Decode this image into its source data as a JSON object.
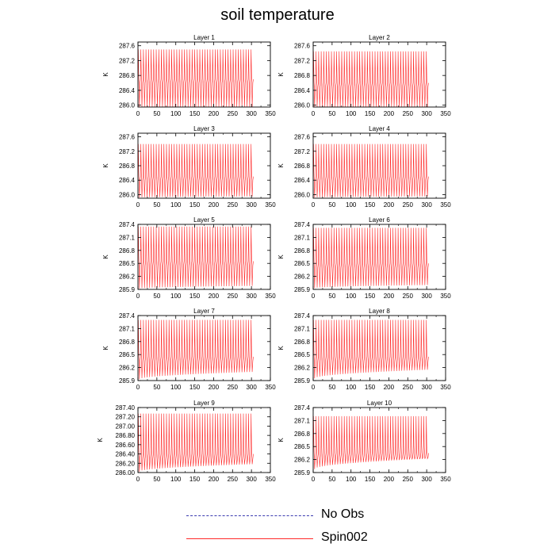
{
  "title": "soil temperature",
  "legend": [
    {
      "label": "No Obs",
      "color": "#3b3bb0",
      "style": "dashed"
    },
    {
      "label": "Spin002",
      "color": "#ff2a2a",
      "style": "solid"
    }
  ],
  "chart_data": [
    {
      "type": "line",
      "title": "Layer 1",
      "xlabel": "",
      "ylabel": "K",
      "xlim": [
        0,
        350
      ],
      "ylim": [
        285.95,
        287.7
      ],
      "xticks": [
        0,
        50,
        100,
        150,
        200,
        250,
        300,
        350
      ],
      "yticks": [
        "286.0",
        "286.4",
        "286.8",
        "287.2",
        "287.6"
      ],
      "series": [
        {
          "name": "Spin002",
          "color": "#ff2a2a",
          "x_range": [
            0,
            305
          ],
          "cycles": 45,
          "peak": 287.5,
          "trough_start": 285.95,
          "trough_end": 285.95,
          "mid": 286.7
        }
      ]
    },
    {
      "type": "line",
      "title": "Layer 2",
      "xlabel": "",
      "ylabel": "K",
      "xlim": [
        0,
        350
      ],
      "ylim": [
        285.95,
        287.7
      ],
      "xticks": [
        0,
        50,
        100,
        150,
        200,
        250,
        300,
        350
      ],
      "yticks": [
        "286.0",
        "286.4",
        "286.8",
        "287.2",
        "287.6"
      ],
      "series": [
        {
          "name": "Spin002",
          "color": "#ff2a2a",
          "x_range": [
            0,
            305
          ],
          "cycles": 45,
          "peak": 287.45,
          "trough_start": 285.95,
          "trough_end": 285.95,
          "mid": 286.6
        }
      ]
    },
    {
      "type": "line",
      "title": "Layer 3",
      "xlabel": "",
      "ylabel": "K",
      "xlim": [
        0,
        350
      ],
      "ylim": [
        285.9,
        287.7
      ],
      "xticks": [
        0,
        50,
        100,
        150,
        200,
        250,
        300,
        350
      ],
      "yticks": [
        "286.0",
        "286.4",
        "286.8",
        "287.2",
        "287.6"
      ],
      "series": [
        {
          "name": "Spin002",
          "color": "#ff2a2a",
          "x_range": [
            0,
            305
          ],
          "cycles": 45,
          "peak": 287.4,
          "trough_start": 285.92,
          "trough_end": 285.95,
          "mid": 286.5
        }
      ]
    },
    {
      "type": "line",
      "title": "Layer 4",
      "xlabel": "",
      "ylabel": "K",
      "xlim": [
        0,
        350
      ],
      "ylim": [
        285.9,
        287.7
      ],
      "xticks": [
        0,
        50,
        100,
        150,
        200,
        250,
        300,
        350
      ],
      "yticks": [
        "286.0",
        "286.4",
        "286.8",
        "287.2",
        "287.6"
      ],
      "series": [
        {
          "name": "Spin002",
          "color": "#ff2a2a",
          "x_range": [
            0,
            305
          ],
          "cycles": 45,
          "peak": 287.4,
          "trough_start": 285.92,
          "trough_end": 285.95,
          "mid": 286.5
        }
      ]
    },
    {
      "type": "line",
      "title": "Layer 5",
      "xlabel": "",
      "ylabel": "K",
      "xlim": [
        0,
        350
      ],
      "ylim": [
        285.9,
        287.4
      ],
      "xticks": [
        0,
        50,
        100,
        150,
        200,
        250,
        300,
        350
      ],
      "yticks": [
        "285.9",
        "286.2",
        "286.5",
        "286.8",
        "287.1",
        "287.4"
      ],
      "series": [
        {
          "name": "Spin002",
          "color": "#ff2a2a",
          "x_range": [
            0,
            305
          ],
          "cycles": 45,
          "peak": 287.35,
          "trough_start": 285.92,
          "trough_end": 285.98,
          "mid": 286.55
        }
      ]
    },
    {
      "type": "line",
      "title": "Layer 6",
      "xlabel": "",
      "ylabel": "K",
      "xlim": [
        0,
        350
      ],
      "ylim": [
        285.9,
        287.4
      ],
      "xticks": [
        0,
        50,
        100,
        150,
        200,
        250,
        300,
        350
      ],
      "yticks": [
        "285.9",
        "286.2",
        "286.5",
        "286.8",
        "287.1",
        "287.4"
      ],
      "series": [
        {
          "name": "Spin002",
          "color": "#ff2a2a",
          "x_range": [
            0,
            305
          ],
          "cycles": 45,
          "peak": 287.32,
          "trough_start": 285.93,
          "trough_end": 286.0,
          "mid": 286.5
        }
      ]
    },
    {
      "type": "line",
      "title": "Layer 7",
      "xlabel": "",
      "ylabel": "K",
      "xlim": [
        0,
        350
      ],
      "ylim": [
        285.9,
        287.4
      ],
      "xticks": [
        0,
        50,
        100,
        150,
        200,
        250,
        300,
        350
      ],
      "yticks": [
        "285.9",
        "286.2",
        "286.5",
        "286.8",
        "287.1",
        "287.4"
      ],
      "series": [
        {
          "name": "Spin002",
          "color": "#ff2a2a",
          "x_range": [
            0,
            305
          ],
          "cycles": 45,
          "peak": 287.3,
          "trough_start": 285.93,
          "trough_end": 286.1,
          "mid": 286.45
        }
      ]
    },
    {
      "type": "line",
      "title": "Layer 8",
      "xlabel": "",
      "ylabel": "K",
      "xlim": [
        0,
        350
      ],
      "ylim": [
        285.9,
        287.4
      ],
      "xticks": [
        0,
        50,
        100,
        150,
        200,
        250,
        300,
        350
      ],
      "yticks": [
        "285.9",
        "286.2",
        "286.5",
        "286.8",
        "287.1",
        "287.4"
      ],
      "series": [
        {
          "name": "Spin002",
          "color": "#ff2a2a",
          "x_range": [
            0,
            305
          ],
          "cycles": 45,
          "peak": 287.3,
          "trough_start": 285.95,
          "trough_end": 286.15,
          "mid": 286.45
        }
      ]
    },
    {
      "type": "line",
      "title": "Layer 9",
      "xlabel": "",
      "ylabel": "K",
      "xlim": [
        0,
        350
      ],
      "ylim": [
        286.0,
        287.4
      ],
      "xticks": [
        0,
        50,
        100,
        150,
        200,
        250,
        300,
        350
      ],
      "yticks": [
        "286.00",
        "286.20",
        "286.40",
        "286.60",
        "286.80",
        "287.00",
        "287.20",
        "287.40"
      ],
      "series": [
        {
          "name": "Spin002",
          "color": "#ff2a2a",
          "x_range": [
            0,
            305
          ],
          "cycles": 45,
          "peak": 287.27,
          "trough_start": 286.02,
          "trough_end": 286.18,
          "mid": 286.4
        }
      ]
    },
    {
      "type": "line",
      "title": "Layer 10",
      "xlabel": "",
      "ylabel": "K",
      "xlim": [
        0,
        350
      ],
      "ylim": [
        285.9,
        287.4
      ],
      "xticks": [
        0,
        50,
        100,
        150,
        200,
        250,
        300,
        350
      ],
      "yticks": [
        "285.9",
        "286.2",
        "286.5",
        "286.8",
        "287.1",
        "287.4"
      ],
      "series": [
        {
          "name": "Spin002",
          "color": "#ff2a2a",
          "x_range": [
            0,
            305
          ],
          "cycles": 45,
          "peak": 287.2,
          "trough_start": 285.98,
          "trough_end": 286.22,
          "mid": 286.35
        }
      ]
    }
  ]
}
